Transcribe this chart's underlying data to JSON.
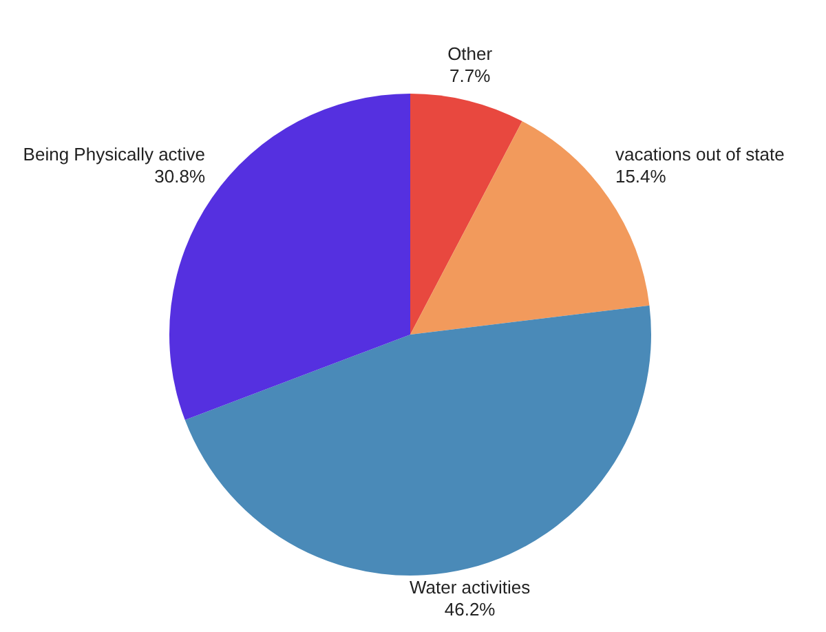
{
  "chart_data": {
    "type": "pie",
    "categories": [
      "Other",
      "vacations out of state",
      "Water activities",
      "Being Physically active"
    ],
    "values": [
      7.7,
      15.4,
      46.2,
      30.8
    ],
    "colors": [
      "#e8483f",
      "#f29a5c",
      "#4a8ab8",
      "#5530e0"
    ],
    "value_labels": [
      "7.7%",
      "15.4%",
      "46.2%",
      "30.8%"
    ],
    "legend": false
  }
}
